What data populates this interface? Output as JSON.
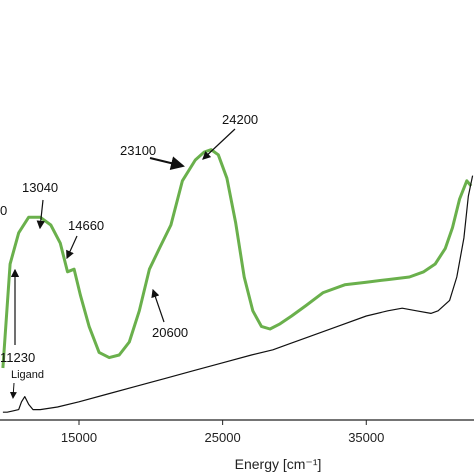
{
  "chart_data": {
    "type": "line",
    "xlabel": "Energy [cm⁻¹]",
    "xlim": [
      9500,
      42500
    ],
    "ylim": [
      0,
      1.0
    ],
    "x_ticks": [
      15000,
      25000,
      35000
    ],
    "x_tick_labels": [
      "15000",
      "25000",
      "35000"
    ],
    "grid": false,
    "colors": {
      "green_series": "#6ab04c",
      "black_series": "#111111",
      "axis": "#222222"
    },
    "series": [
      {
        "color": "#6ab04c",
        "x": [
          9700,
          10200,
          10800,
          11500,
          12300,
          13040,
          13700,
          14200,
          14660,
          15100,
          15700,
          16400,
          17100,
          17800,
          18500,
          19200,
          19900,
          20600,
          21400,
          22200,
          23100,
          23700,
          24200,
          24700,
          25300,
          25900,
          26500,
          27100,
          27700,
          28300,
          29000,
          29800,
          30800,
          32000,
          33500,
          35000,
          36500,
          38000,
          39000,
          39800,
          40500,
          41000,
          41500,
          42000,
          42300
        ],
        "y": [
          0.2,
          0.6,
          0.72,
          0.78,
          0.78,
          0.75,
          0.68,
          0.57,
          0.58,
          0.48,
          0.36,
          0.26,
          0.24,
          0.25,
          0.3,
          0.42,
          0.58,
          0.66,
          0.75,
          0.92,
          1.0,
          1.03,
          1.04,
          1.02,
          0.93,
          0.76,
          0.55,
          0.42,
          0.36,
          0.35,
          0.37,
          0.4,
          0.44,
          0.49,
          0.52,
          0.53,
          0.54,
          0.55,
          0.57,
          0.6,
          0.66,
          0.74,
          0.85,
          0.92,
          0.9
        ]
      },
      {
        "color": "#111111",
        "x": [
          9700,
          10000,
          10400,
          10800,
          11000,
          11230,
          11500,
          11800,
          12300,
          13500,
          15000,
          17000,
          19000,
          21000,
          23000,
          25000,
          27000,
          28500,
          29000,
          29500,
          31000,
          33000,
          35000,
          36500,
          37500,
          38500,
          39500,
          40000,
          40800,
          41300,
          41800,
          42100,
          42400
        ],
        "y": [
          0.03,
          0.03,
          0.035,
          0.04,
          0.07,
          0.09,
          0.06,
          0.04,
          0.04,
          0.05,
          0.07,
          0.1,
          0.13,
          0.16,
          0.19,
          0.22,
          0.25,
          0.27,
          0.28,
          0.29,
          0.32,
          0.36,
          0.4,
          0.42,
          0.43,
          0.42,
          0.41,
          0.42,
          0.46,
          0.55,
          0.7,
          0.86,
          0.94
        ]
      }
    ],
    "annotations": [
      {
        "text": "13040",
        "x": 13040,
        "y": 0.78
      },
      {
        "text": "14660",
        "x": 14660,
        "y": 0.58
      },
      {
        "text": "23100",
        "x": 23100,
        "y": 1.0
      },
      {
        "text": "24200",
        "x": 24200,
        "y": 1.04
      },
      {
        "text": "20600",
        "x": 20600,
        "y": 0.66
      },
      {
        "text": "11230",
        "x": 11230,
        "y": 0.09
      },
      {
        "text": "Ligand",
        "x": 11230,
        "y": 0.09
      },
      {
        "text": "0",
        "x": 9600,
        "y": 0.92
      }
    ]
  }
}
